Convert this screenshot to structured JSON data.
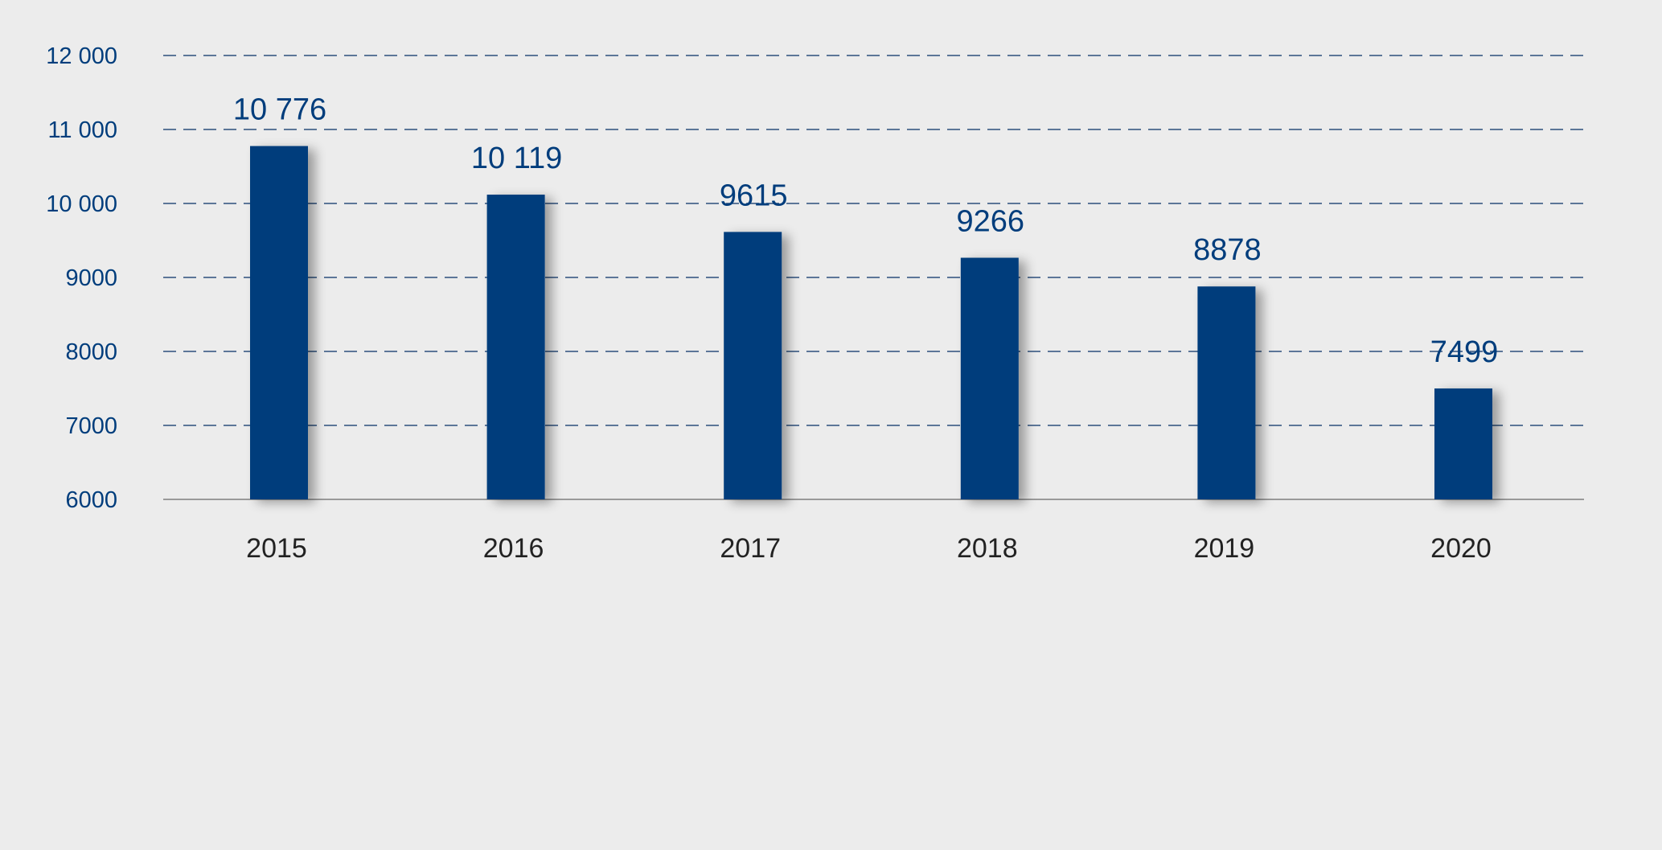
{
  "chart_data": {
    "type": "bar",
    "categories": [
      "2015",
      "2016",
      "2017",
      "2018",
      "2019",
      "2020"
    ],
    "values": [
      10776,
      10119,
      9615,
      9266,
      8878,
      7499
    ],
    "data_labels": [
      "10 776",
      "10 119",
      "9615",
      "9266",
      "8878",
      "7499"
    ],
    "yticks": [
      6000,
      7000,
      8000,
      9000,
      10000,
      11000,
      12000
    ],
    "ytick_labels": [
      "6000",
      "7000",
      "8000",
      "9000",
      "10 000",
      "11 000",
      "12 000"
    ],
    "ylim": [
      6000,
      12000
    ],
    "title": "",
    "xlabel": "",
    "ylabel": "",
    "grid": true,
    "legend": false,
    "colors": {
      "bar": "#003d7c",
      "text": "#003d7c",
      "x_tick": "#222222",
      "gridline": "#2c4f7c",
      "axis": "#9a9a9a",
      "background": "#ececec"
    }
  }
}
